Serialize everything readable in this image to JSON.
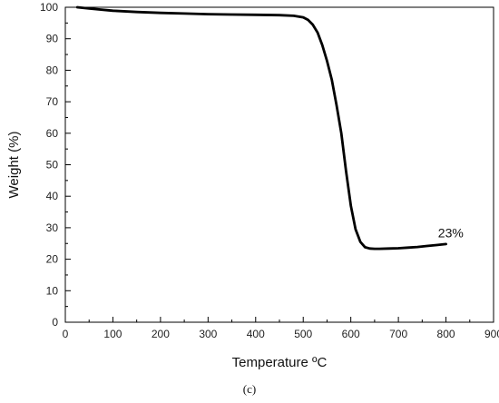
{
  "chart_data": {
    "type": "line",
    "xlabel": "Temperature ºC",
    "ylabel": "Weight (%)",
    "xlim": [
      0,
      900
    ],
    "ylim": [
      0,
      100
    ],
    "xticks": [
      0,
      100,
      200,
      300,
      400,
      500,
      600,
      700,
      800,
      900
    ],
    "yticks": [
      0,
      10,
      20,
      30,
      40,
      50,
      60,
      70,
      80,
      90,
      100
    ],
    "grid": false,
    "series": [
      {
        "x": [
          25,
          50,
          100,
          150,
          200,
          250,
          300,
          350,
          400,
          450,
          480,
          500,
          510,
          520,
          530,
          540,
          550,
          560,
          570,
          580,
          590,
          600,
          610,
          620,
          630,
          640,
          650,
          660,
          680,
          700,
          720,
          740,
          760,
          780,
          800
        ],
        "y": [
          100,
          99.6,
          98.9,
          98.5,
          98.2,
          98.0,
          97.8,
          97.7,
          97.6,
          97.5,
          97.3,
          96.8,
          96.0,
          94.5,
          92.0,
          88.0,
          83.0,
          77.0,
          69.0,
          60.0,
          48.0,
          37.0,
          29.5,
          25.5,
          23.8,
          23.4,
          23.3,
          23.3,
          23.4,
          23.5,
          23.7,
          23.9,
          24.2,
          24.5,
          24.8
        ],
        "color": "#000000"
      }
    ],
    "annotations": [
      {
        "text": "23%",
        "x": 810,
        "y": 27
      }
    ]
  },
  "caption": "(c)"
}
